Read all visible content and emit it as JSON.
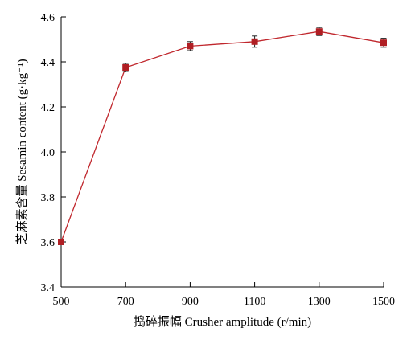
{
  "chart_data": {
    "type": "line",
    "xlabel": "捣碎振幅 Crusher amplitude (r/min)",
    "ylabel": "芝麻素含量 Sesamin content (g·kg⁻¹)",
    "x": [
      500,
      700,
      900,
      1100,
      1300,
      1500
    ],
    "series": [
      {
        "values": [
          3.6,
          4.375,
          4.47,
          4.49,
          4.535,
          4.485
        ],
        "error": [
          0.01,
          0.018,
          0.02,
          0.025,
          0.018,
          0.02
        ]
      }
    ],
    "xlim": [
      500,
      1500
    ],
    "ylim": [
      3.4,
      4.6
    ],
    "x_ticks": [
      "500",
      "700",
      "900",
      "1100",
      "1300",
      "1500"
    ],
    "y_ticks": [
      "3.4",
      "3.6",
      "3.8",
      "4.0",
      "4.2",
      "4.4",
      "4.6"
    ],
    "grid": false,
    "colors": {
      "line": "#c0272d",
      "marker": "#b01e23",
      "axis": "#000000"
    }
  }
}
